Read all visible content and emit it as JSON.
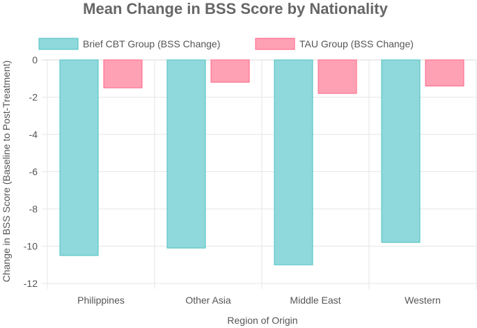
{
  "chart_data": {
    "type": "bar",
    "title": "Mean Change in BSS Score by Nationality",
    "xlabel": "Region of Origin",
    "ylabel": "Change in BSS Score (Baseline to Post-Treatment)",
    "categories": [
      "Philippines",
      "Other Asia",
      "Middle East",
      "Western"
    ],
    "series": [
      {
        "name": "Brief CBT Group (BSS Change)",
        "values": [
          -10.5,
          -10.1,
          -11.0,
          -9.8
        ],
        "fill": "#8fd8db",
        "stroke": "#4bc0c0"
      },
      {
        "name": "TAU Group (BSS Change)",
        "values": [
          -1.5,
          -1.2,
          -1.8,
          -1.4
        ],
        "fill": "#ffa1b5",
        "stroke": "#ff6384"
      }
    ],
    "ylim": [
      -12,
      0
    ],
    "yticks": [
      0,
      -2,
      -4,
      -6,
      -8,
      -10,
      -12
    ],
    "grid": true,
    "legend": "top-center"
  }
}
